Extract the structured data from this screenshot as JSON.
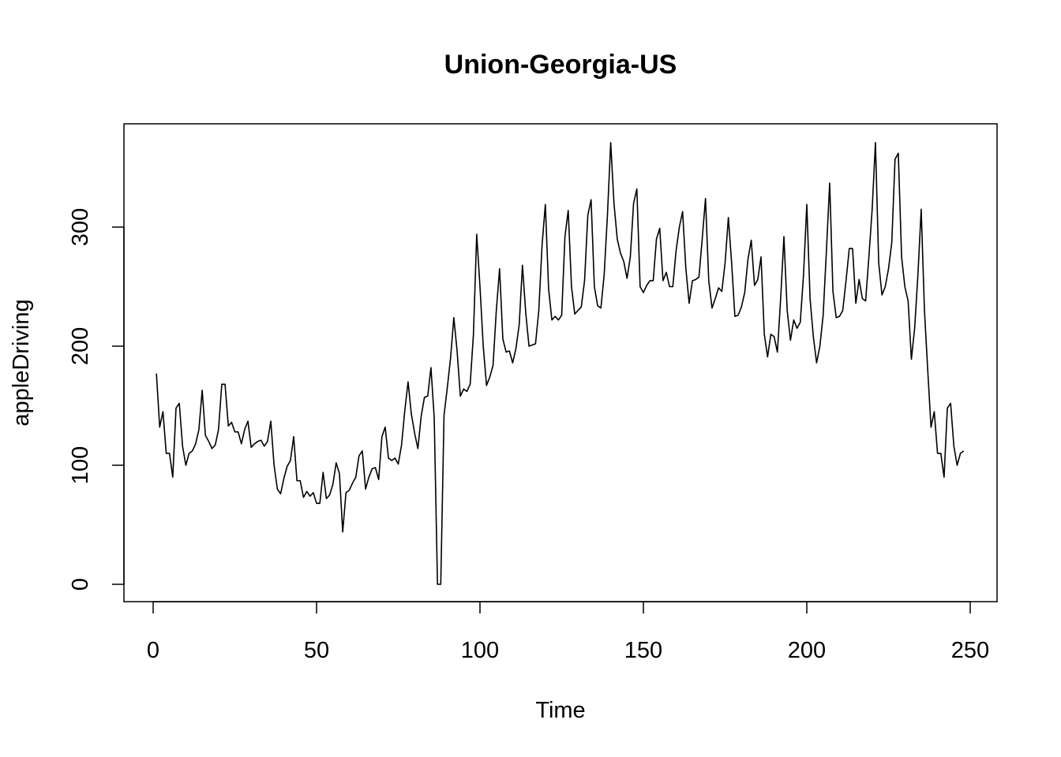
{
  "chart_data": {
    "type": "line",
    "title": "Union-Georgia-US",
    "xlabel": "Time",
    "ylabel": "appleDriving",
    "xlim": [
      0,
      250
    ],
    "ylim": [
      0,
      370
    ],
    "xticks": [
      0,
      50,
      100,
      150,
      200,
      250
    ],
    "xtick_labels": [
      "0",
      "50",
      "100",
      "150",
      "200",
      "250"
    ],
    "yticks": [
      0,
      100,
      200,
      300
    ],
    "ytick_labels": [
      "0",
      "100",
      "200",
      "300"
    ],
    "grid": false,
    "legend": "none",
    "line_color": "#000000",
    "x": [
      1,
      2,
      3,
      4,
      5,
      6,
      7,
      8,
      9,
      10,
      11,
      12,
      13,
      14,
      15,
      16,
      17,
      18,
      19,
      20,
      21,
      22,
      23,
      24,
      25,
      26,
      27,
      28,
      29,
      30,
      31,
      32,
      33,
      34,
      35,
      36,
      37,
      38,
      39,
      40,
      41,
      42,
      43,
      44,
      45,
      46,
      47,
      48,
      49,
      50,
      51,
      52,
      53,
      54,
      55,
      56,
      57,
      58,
      59,
      60,
      61,
      62,
      63,
      64,
      65,
      66,
      67,
      68,
      69,
      70,
      71,
      72,
      73,
      74,
      75,
      76,
      77,
      78,
      79,
      80,
      81,
      82,
      83,
      84,
      85,
      86,
      87,
      88,
      89,
      90,
      91,
      92,
      93,
      94,
      95,
      96,
      97,
      98,
      99,
      100,
      101,
      102,
      103,
      104,
      105,
      106,
      107,
      108,
      109,
      110,
      111,
      112,
      113,
      114,
      115,
      116,
      117,
      118,
      119,
      120,
      121,
      122,
      123,
      124,
      125,
      126,
      127,
      128,
      129,
      130,
      131,
      132,
      133,
      134,
      135,
      136,
      137,
      138,
      139,
      140,
      141,
      142,
      143,
      144,
      145,
      146,
      147,
      148,
      149,
      150,
      151,
      152,
      153,
      154,
      155,
      156,
      157,
      158,
      159,
      160,
      161,
      162,
      163,
      164,
      165,
      166,
      167,
      168,
      169,
      170,
      171,
      172,
      173,
      174,
      175,
      176,
      177,
      178,
      179,
      180,
      181,
      182,
      183,
      184,
      185,
      186,
      187,
      188,
      189,
      190,
      191,
      192,
      193,
      194,
      195,
      196,
      197,
      198,
      199,
      200,
      201,
      202,
      203,
      204,
      205,
      206,
      207,
      208,
      209,
      210,
      211,
      212,
      213,
      214,
      215,
      216,
      217,
      218,
      219,
      220,
      221,
      222,
      223,
      224,
      225,
      226,
      227,
      228,
      229,
      230,
      231,
      232,
      233,
      234,
      235,
      236,
      237,
      238,
      239,
      240,
      241,
      242,
      243,
      244,
      245,
      246,
      247,
      248
    ],
    "y": [
      177,
      132,
      145,
      110,
      110,
      90,
      148,
      152,
      116,
      100,
      110,
      112,
      118,
      130,
      163,
      125,
      120,
      114,
      117,
      130,
      168,
      168,
      133,
      136,
      128,
      128,
      118,
      130,
      137,
      115,
      118,
      120,
      121,
      116,
      120,
      137,
      100,
      80,
      76,
      89,
      99,
      104,
      124,
      87,
      87,
      73,
      78,
      74,
      77,
      68,
      68,
      94,
      72,
      75,
      84,
      102,
      93,
      44,
      77,
      79,
      85,
      90,
      108,
      112,
      80,
      90,
      97,
      98,
      88,
      124,
      132,
      106,
      104,
      106,
      101,
      117,
      146,
      170,
      143,
      127,
      114,
      141,
      157,
      158,
      182,
      140,
      0,
      0,
      142,
      165,
      190,
      224,
      196,
      158,
      164,
      162,
      168,
      210,
      294,
      250,
      200,
      167,
      174,
      184,
      230,
      265,
      206,
      195,
      196,
      186,
      198,
      218,
      268,
      228,
      200,
      201,
      202,
      230,
      285,
      319,
      248,
      222,
      225,
      222,
      226,
      292,
      314,
      250,
      227,
      230,
      233,
      255,
      310,
      323,
      250,
      234,
      232,
      260,
      310,
      371,
      320,
      290,
      278,
      271,
      257,
      275,
      320,
      332,
      250,
      245,
      251,
      255,
      255,
      290,
      299,
      255,
      262,
      250,
      250,
      280,
      300,
      313,
      265,
      236,
      255,
      256,
      258,
      290,
      324,
      255,
      232,
      240,
      249,
      246,
      270,
      308,
      270,
      225,
      226,
      233,
      245,
      273,
      289,
      251,
      256,
      275,
      210,
      191,
      210,
      208,
      195,
      240,
      292,
      230,
      205,
      222,
      215,
      220,
      260,
      319,
      240,
      208,
      186,
      200,
      226,
      280,
      337,
      246,
      224,
      225,
      230,
      255,
      282,
      282,
      236,
      256,
      240,
      238,
      275,
      315,
      371,
      270,
      243,
      250,
      265,
      287,
      357,
      362,
      275,
      250,
      238,
      189,
      215,
      260,
      315,
      230,
      180,
      132,
      145,
      110,
      110,
      90,
      148,
      152,
      116,
      100,
      110,
      112
    ]
  }
}
